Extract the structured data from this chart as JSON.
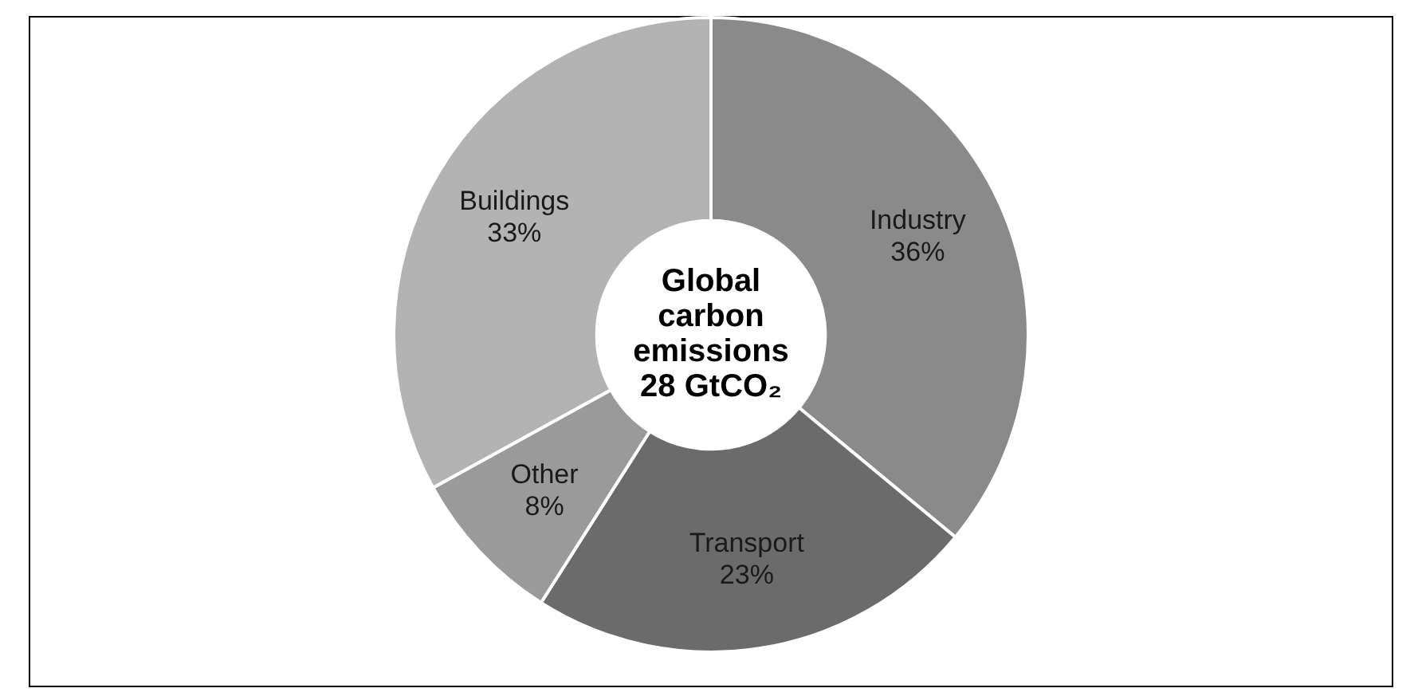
{
  "chart_data": {
    "type": "donut",
    "title": "Global carbon emissions 28 GtCO₂",
    "categories": [
      "Industry",
      "Transport",
      "Other",
      "Buildings"
    ],
    "values": [
      36,
      23,
      8,
      33
    ],
    "colors": [
      "#8a8a8a",
      "#6b6b6b",
      "#9a9a9a",
      "#b3b3b3"
    ],
    "value_labels": [
      "36%",
      "23%",
      "8%",
      "33%"
    ],
    "legend": false
  }
}
